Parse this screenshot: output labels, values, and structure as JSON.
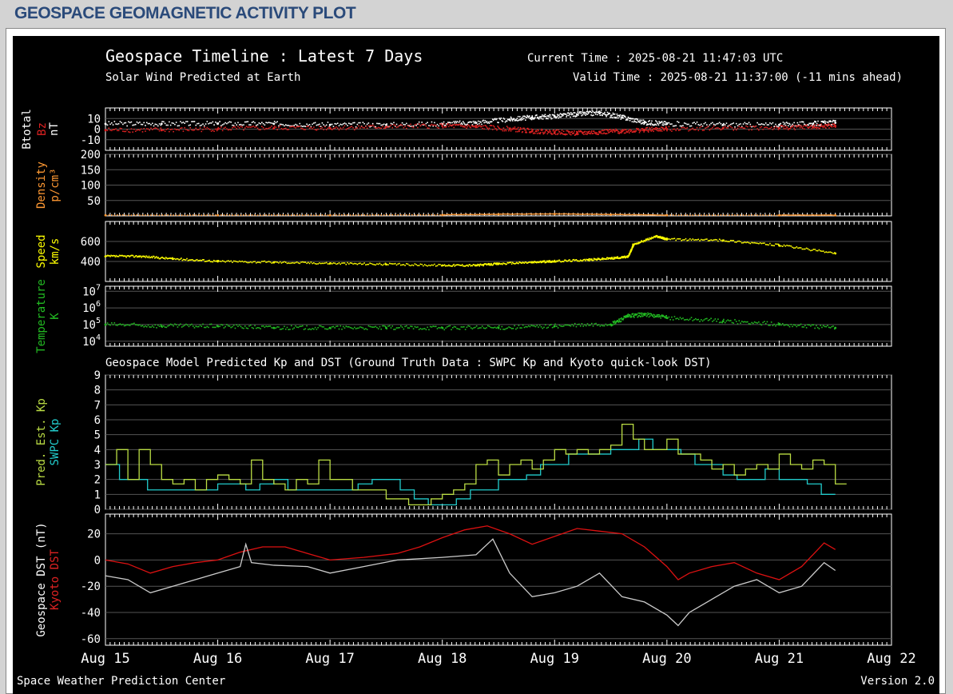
{
  "page_heading": "GEOSPACE GEOMAGNETIC ACTIVITY PLOT",
  "header": {
    "title": "Geospace Timeline : Latest 7 Days",
    "subtitle": "Solar Wind Predicted at Earth",
    "current_time": "Current Time : 2025-08-21 11:47:03 UTC",
    "valid_time": "Valid Time : 2025-08-21 11:37:00 (-11 mins ahead)",
    "kp_dst_title": "Geospace Model Predicted Kp and DST (Ground Truth Data : SWPC Kp and Kyoto quick-look DST)"
  },
  "footer": {
    "left": "Space Weather Prediction Center",
    "right": "Version 2.0"
  },
  "x_axis": {
    "tick_labels": [
      "Aug 15",
      "Aug 16",
      "Aug 17",
      "Aug 18",
      "Aug 19",
      "Aug 20",
      "Aug 21",
      "Aug 22"
    ],
    "range_days": [
      15,
      22
    ]
  },
  "colors": {
    "btotal": "#ffffff",
    "bz": "#dd2222",
    "density": "#ff9933",
    "speed": "#ffff00",
    "temperature": "#22bb22",
    "pred_kp": "#bbdd44",
    "swpc_kp": "#22cccc",
    "geospace_dst": "#cccccc",
    "kyoto_dst": "#dd1111",
    "grid": "#555555",
    "text": "#ffffff"
  },
  "chart_data": [
    {
      "type": "scatter",
      "panel": "mag",
      "ylabels": [
        {
          "text": "Btotal",
          "color": "#ffffff"
        },
        {
          "text": "Bz",
          "color": "#dd2222"
        },
        {
          "text": "nT",
          "color": "#ffffff"
        }
      ],
      "yticks": [
        "10",
        "0",
        "-10"
      ],
      "ylim": [
        -20,
        20
      ],
      "series": [
        {
          "name": "Btotal",
          "color": "#ffffff",
          "x": [
            15.0,
            15.5,
            16.0,
            16.5,
            17.0,
            17.5,
            18.0,
            18.3,
            18.6,
            18.8,
            19.0,
            19.2,
            19.4,
            19.6,
            19.8,
            20.0,
            20.5,
            21.0,
            21.3,
            21.5
          ],
          "y": [
            5,
            5,
            5,
            5,
            4,
            4,
            5,
            6,
            9,
            11,
            12,
            14,
            15,
            11,
            6,
            5,
            4,
            4,
            5,
            6
          ]
        },
        {
          "name": "Bz",
          "color": "#dd2222",
          "x": [
            15.0,
            15.5,
            16.0,
            16.5,
            17.0,
            17.5,
            18.0,
            18.3,
            18.6,
            18.8,
            19.0,
            19.2,
            19.4,
            19.6,
            19.8,
            20.0,
            20.5,
            21.0,
            21.3,
            21.5
          ],
          "y": [
            -1,
            -1,
            0,
            1,
            1,
            2,
            3,
            2,
            0,
            -2,
            -3,
            -4,
            -3,
            -2,
            -1,
            0,
            1,
            1,
            2,
            3
          ]
        }
      ]
    },
    {
      "type": "scatter",
      "panel": "density",
      "ylabels": [
        {
          "text": "Density",
          "color": "#ff9933"
        },
        {
          "text": "p/cm³",
          "color": "#ff9933"
        }
      ],
      "yticks": [
        "200",
        "150",
        "100",
        "50"
      ],
      "ylim": [
        0,
        200
      ],
      "series": [
        {
          "name": "Density",
          "color": "#ff9933",
          "x": [
            15.0,
            16.0,
            17.0,
            18.0,
            18.5,
            19.0,
            19.5,
            20.0,
            21.0,
            21.5
          ],
          "y": [
            2,
            2,
            2,
            3,
            5,
            6,
            4,
            2,
            2,
            2
          ]
        }
      ]
    },
    {
      "type": "scatter",
      "panel": "speed",
      "ylabels": [
        {
          "text": "Speed",
          "color": "#ffff00"
        },
        {
          "text": "km/s",
          "color": "#ffff00"
        }
      ],
      "yticks": [
        "600",
        "400"
      ],
      "ylim": [
        200,
        800
      ],
      "series": [
        {
          "name": "Speed",
          "color": "#ffff00",
          "x": [
            15.0,
            15.3,
            15.6,
            16.0,
            16.5,
            17.0,
            17.5,
            18.0,
            18.3,
            18.5,
            18.8,
            19.0,
            19.3,
            19.5,
            19.65,
            19.7,
            19.9,
            20.0,
            20.5,
            21.0,
            21.5
          ],
          "y": [
            450,
            450,
            425,
            400,
            390,
            380,
            370,
            360,
            360,
            375,
            390,
            400,
            415,
            430,
            445,
            570,
            650,
            620,
            610,
            560,
            480
          ]
        }
      ]
    },
    {
      "type": "scatter",
      "panel": "temperature",
      "ylabels": [
        {
          "text": "Temperature",
          "color": "#22bb22"
        },
        {
          "text": "K",
          "color": "#22bb22"
        }
      ],
      "yticks": [
        "7",
        "6",
        "5",
        "4"
      ],
      "yscale": "log",
      "ylim": [
        3.7,
        7.3
      ],
      "series": [
        {
          "name": "Temperature",
          "color": "#22bb22",
          "x": [
            15.0,
            15.5,
            16.0,
            16.5,
            17.0,
            17.5,
            18.0,
            18.5,
            19.0,
            19.5,
            19.65,
            19.8,
            20.0,
            20.5,
            21.0,
            21.5
          ],
          "y": [
            5.0,
            4.9,
            4.9,
            4.8,
            4.8,
            4.8,
            4.8,
            4.8,
            4.9,
            5.0,
            5.5,
            5.6,
            5.4,
            5.2,
            5.0,
            4.8
          ]
        }
      ]
    },
    {
      "type": "line",
      "panel": "kp",
      "ylabels": [
        {
          "text": "Pred. Est. Kp",
          "color": "#bbdd44"
        },
        {
          "text": "SWPC Kp",
          "color": "#22cccc"
        }
      ],
      "yticks": [
        "9",
        "8",
        "7",
        "6",
        "5",
        "4",
        "3",
        "2",
        "1",
        "0"
      ],
      "ylim": [
        0,
        9
      ],
      "series": [
        {
          "name": "SWPC Kp",
          "color": "#22cccc",
          "x": [
            15.0,
            15.125,
            15.25,
            15.375,
            15.5,
            15.625,
            15.75,
            15.875,
            16.0,
            16.125,
            16.25,
            16.375,
            16.5,
            16.625,
            16.75,
            16.875,
            17.0,
            17.125,
            17.25,
            17.375,
            17.5,
            17.625,
            17.75,
            17.875,
            18.0,
            18.125,
            18.25,
            18.375,
            18.5,
            18.625,
            18.75,
            18.875,
            19.0,
            19.125,
            19.25,
            19.375,
            19.5,
            19.625,
            19.75,
            19.875,
            20.0,
            20.125,
            20.25,
            20.375,
            20.5,
            20.625,
            20.75,
            20.875,
            21.0,
            21.125,
            21.25,
            21.375
          ],
          "y": [
            3,
            2,
            2,
            1.3,
            1.3,
            1.3,
            1.3,
            1.3,
            1.7,
            1.7,
            1.3,
            1.7,
            2,
            1.3,
            1.3,
            1.3,
            1.3,
            1.3,
            1.7,
            2,
            2,
            1.3,
            0.7,
            0.3,
            0.3,
            0.7,
            1.3,
            1.3,
            2,
            2,
            2.3,
            3,
            3,
            3.7,
            3.7,
            3.7,
            4,
            4,
            4.7,
            4,
            4,
            3.7,
            3,
            3,
            2.3,
            2,
            2,
            2.7,
            2,
            2,
            1.7,
            1
          ]
        },
        {
          "name": "Pred. Est. Kp",
          "color": "#bbdd44",
          "x": [
            15.0,
            15.1,
            15.2,
            15.3,
            15.4,
            15.5,
            15.6,
            15.7,
            15.8,
            15.9,
            16.0,
            16.1,
            16.2,
            16.3,
            16.4,
            16.5,
            16.6,
            16.7,
            16.8,
            16.9,
            17.0,
            17.2,
            17.5,
            17.7,
            17.9,
            18.0,
            18.1,
            18.2,
            18.3,
            18.4,
            18.5,
            18.6,
            18.7,
            18.8,
            18.9,
            19.0,
            19.1,
            19.2,
            19.3,
            19.4,
            19.5,
            19.6,
            19.7,
            19.8,
            19.9,
            20.0,
            20.1,
            20.2,
            20.3,
            20.4,
            20.5,
            20.6,
            20.7,
            20.8,
            20.9,
            21.0,
            21.1,
            21.2,
            21.3,
            21.4,
            21.5
          ],
          "y": [
            3,
            4,
            2,
            4,
            3,
            2,
            1.7,
            2,
            1.3,
            2,
            2.3,
            2,
            1.7,
            3.3,
            2,
            1.7,
            1.3,
            2,
            1.7,
            3.3,
            2,
            1.3,
            0.7,
            0.3,
            0.7,
            1,
            1.3,
            1.7,
            3,
            3.3,
            2.3,
            3,
            3.3,
            2.7,
            3.3,
            4,
            3.7,
            4,
            3.7,
            4,
            4.3,
            5.7,
            4.7,
            4,
            4,
            4.7,
            3.7,
            3.7,
            3.3,
            2.7,
            3,
            2.3,
            2.7,
            3,
            2.7,
            3.7,
            3,
            2.7,
            3.3,
            3,
            1.7
          ]
        }
      ]
    },
    {
      "type": "line",
      "panel": "dst",
      "ylabels": [
        {
          "text": "Geospace DST (nT)",
          "color": "#ffffff"
        },
        {
          "text": "Kyoto DST",
          "color": "#dd2222"
        }
      ],
      "yticks": [
        "20",
        "0",
        "-20",
        "-40",
        "-60"
      ],
      "ylim": [
        -65,
        35
      ],
      "series": [
        {
          "name": "Kyoto DST",
          "color": "#dd1111",
          "x": [
            15.0,
            15.2,
            15.4,
            15.6,
            15.8,
            16.0,
            16.2,
            16.4,
            16.6,
            16.8,
            17.0,
            17.3,
            17.6,
            17.8,
            18.0,
            18.2,
            18.4,
            18.6,
            18.8,
            19.0,
            19.2,
            19.4,
            19.6,
            19.8,
            20.0,
            20.1,
            20.2,
            20.4,
            20.6,
            20.8,
            21.0,
            21.2,
            21.4,
            21.5
          ],
          "y": [
            0,
            -3,
            -10,
            -5,
            -2,
            0,
            6,
            10,
            10,
            5,
            0,
            2,
            5,
            10,
            17,
            23,
            26,
            20,
            12,
            18,
            24,
            22,
            20,
            10,
            -5,
            -15,
            -10,
            -5,
            -2,
            -10,
            -15,
            -5,
            13,
            8
          ]
        },
        {
          "name": "Geospace DST",
          "color": "#cccccc",
          "x": [
            15.0,
            15.2,
            15.4,
            15.6,
            15.8,
            16.0,
            16.2,
            16.25,
            16.3,
            16.5,
            16.8,
            17.0,
            17.3,
            17.6,
            18.0,
            18.3,
            18.45,
            18.6,
            18.8,
            19.0,
            19.2,
            19.4,
            19.6,
            19.8,
            20.0,
            20.1,
            20.2,
            20.4,
            20.6,
            20.8,
            21.0,
            21.2,
            21.4,
            21.5
          ],
          "y": [
            -12,
            -15,
            -25,
            -20,
            -15,
            -10,
            -5,
            12,
            -2,
            -4,
            -5,
            -10,
            -5,
            0,
            2,
            4,
            16,
            -10,
            -28,
            -25,
            -20,
            -10,
            -28,
            -32,
            -42,
            -50,
            -40,
            -30,
            -20,
            -15,
            -25,
            -20,
            -2,
            -8
          ]
        }
      ]
    }
  ]
}
